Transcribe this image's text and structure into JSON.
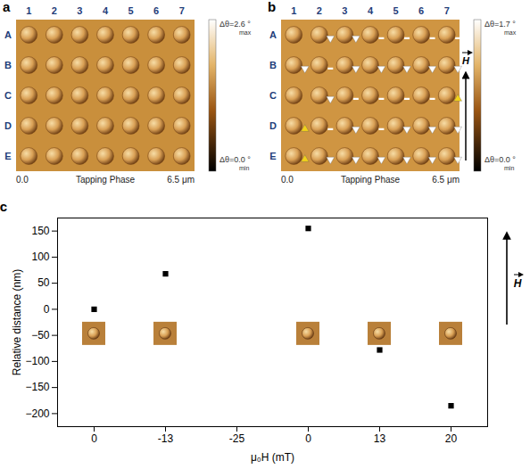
{
  "panels": [
    {
      "letter": "a",
      "color": "#c98f3c",
      "rows": [
        "A",
        "B",
        "C",
        "D",
        "E"
      ],
      "columns": [
        "1",
        "2",
        "3",
        "4",
        "5",
        "6",
        "7"
      ],
      "colorbar": {
        "max": "Δθ=2.6 °",
        "max_sub": "max",
        "min": "Δθ=0.0 °",
        "min_sub": "min"
      },
      "axis": {
        "start": "0.0",
        "title": "Tapping Phase",
        "end": "6.5 μm"
      }
    },
    {
      "letter": "b",
      "color": "#cf9542",
      "rows": [
        "A",
        "B",
        "C",
        "D",
        "E"
      ],
      "columns": [
        "1",
        "2",
        "3",
        "4",
        "5",
        "6",
        "7"
      ],
      "colorbar": {
        "max": "Δθ=1.7 °",
        "max_sub": "max",
        "min": "Δθ=0.0 °",
        "min_sub": "min"
      },
      "axis": {
        "start": "0.0",
        "title": "Tapping Phase",
        "end": "6.5 μm"
      },
      "field_label": "H",
      "markers": [
        [
          null,
          "down",
          "down",
          "dash",
          "dash",
          "dash",
          "dash"
        ],
        [
          "down",
          "dash",
          "down",
          "down",
          "down",
          "down",
          "down"
        ],
        [
          null,
          "down",
          "dash",
          "dash",
          "dash",
          "dash",
          "up"
        ],
        [
          "up",
          "dash",
          "down",
          "dash",
          "down",
          "down",
          "down"
        ],
        [
          "up",
          "down",
          "down",
          "down",
          "down",
          "down",
          "down"
        ]
      ]
    }
  ],
  "chart_data": {
    "letter": "c",
    "type": "scatter",
    "x_label": "μ₀H (mT)",
    "y_label": "Relative distance (nm)",
    "categories": [
      "0",
      "-13",
      "-25",
      "0",
      "13",
      "20"
    ],
    "values": [
      0,
      68,
      null,
      155,
      -78,
      -185
    ],
    "ylim": [
      -225,
      175
    ],
    "yticks": [
      -200,
      -150,
      -100,
      -50,
      0,
      50,
      100,
      150
    ],
    "color": "#000000",
    "marker": "square",
    "field_label": "H"
  }
}
